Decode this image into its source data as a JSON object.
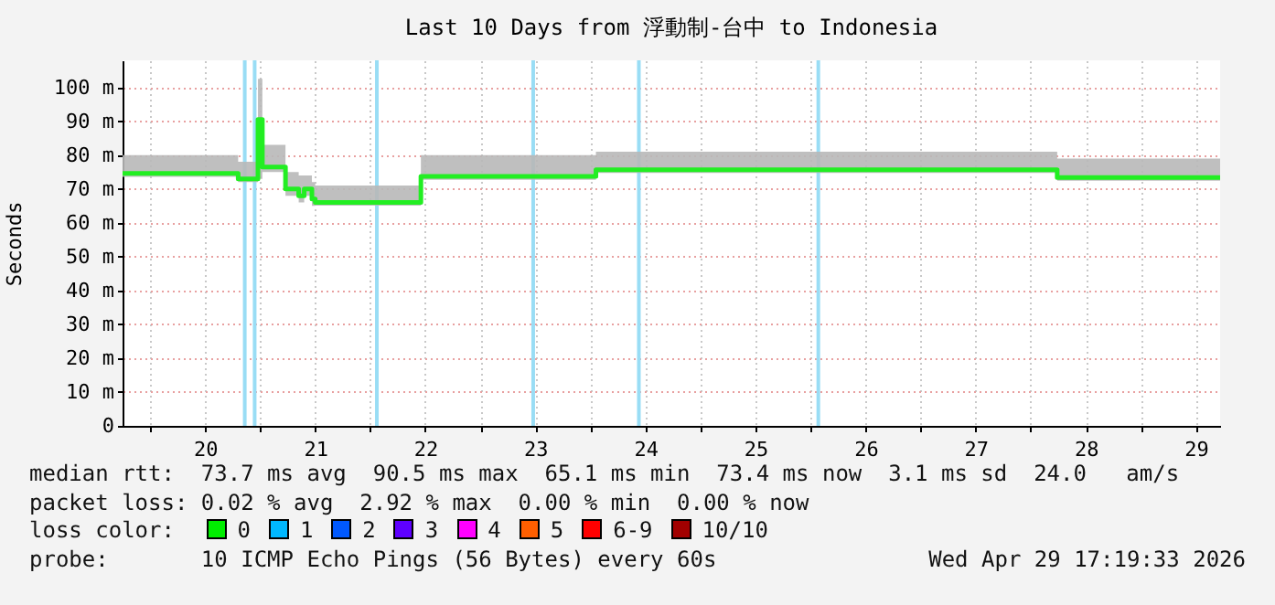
{
  "chart_data": {
    "type": "step",
    "title": "Last 10 Days from 浮動制-台中 to Indonesia",
    "ylabel": "Seconds",
    "xlim": [
      19.75,
      29.72
    ],
    "xticks": [
      {
        "value": 20,
        "label": null
      },
      {
        "value": 20.5,
        "label": "20"
      },
      {
        "value": 21,
        "label": null
      },
      {
        "value": 21.5,
        "label": "21"
      },
      {
        "value": 22,
        "label": null
      },
      {
        "value": 22.5,
        "label": "22"
      },
      {
        "value": 23,
        "label": null
      },
      {
        "value": 23.5,
        "label": "23"
      },
      {
        "value": 24,
        "label": null
      },
      {
        "value": 24.5,
        "label": "24"
      },
      {
        "value": 25,
        "label": null
      },
      {
        "value": 25.5,
        "label": "25"
      },
      {
        "value": 26,
        "label": null
      },
      {
        "value": 26.5,
        "label": "26"
      },
      {
        "value": 27,
        "label": null
      },
      {
        "value": 27.5,
        "label": "27"
      },
      {
        "value": 28,
        "label": null
      },
      {
        "value": 28.5,
        "label": "28"
      },
      {
        "value": 29,
        "label": null
      },
      {
        "value": 29.5,
        "label": "29"
      }
    ],
    "ylim": [
      0,
      108
    ],
    "yticks": [
      0,
      {
        "value": 10,
        "label": "10 m"
      },
      {
        "value": 20,
        "label": "20 m"
      },
      {
        "value": 30,
        "label": "30 m"
      },
      {
        "value": 40,
        "label": "40 m"
      },
      {
        "value": 50,
        "label": "50 m"
      },
      {
        "value": 60,
        "label": "60 m"
      },
      {
        "value": 70,
        "label": "70 m"
      },
      {
        "value": 80,
        "label": "80 m"
      },
      {
        "value": 90,
        "label": "90 m"
      },
      {
        "value": 100,
        "label": "100 m"
      }
    ],
    "grid": true,
    "series": [
      {
        "color": "#22ee22",
        "x": [
          19.75,
          20.8,
          20.98,
          21.02,
          21.23,
          21.35,
          21.4,
          21.47,
          21.5,
          22.46,
          24.05,
          28.24,
          29.72
        ],
        "values": [
          74.6,
          73,
          90.5,
          76.5,
          70,
          68,
          70,
          67,
          66,
          73.7,
          75.7,
          73.4,
          73.4
        ],
        "lower": [
          73.6,
          72,
          73,
          75,
          68,
          66,
          68,
          65,
          65.1,
          72.7,
          74.7,
          72.4,
          72.4
        ],
        "upper": [
          80,
          78,
          102.5,
          83,
          75,
          74,
          74,
          72,
          71,
          80,
          81,
          79,
          79
        ]
      }
    ],
    "ref_lines": [
      {
        "axis": "x",
        "value": 20.86,
        "color": "#99ddf5"
      },
      {
        "axis": "x",
        "value": 20.95,
        "color": "#99ddf5"
      },
      {
        "axis": "x",
        "value": 22.06,
        "color": "#99ddf5"
      },
      {
        "axis": "x",
        "value": 23.48,
        "color": "#99ddf5"
      },
      {
        "axis": "x",
        "value": 24.44,
        "color": "#99ddf5"
      },
      {
        "axis": "x",
        "value": 26.07,
        "color": "#99ddf5"
      }
    ],
    "annotations": [
      "median rtt:  73.7 ms avg  90.5 ms max  65.1 ms min  73.4 ms now  3.1 ms sd  24.0   am/s",
      "packet loss: 0.02 % avg  2.92 % max  0.00 % min  0.00 % now",
      "loss color:",
      "0",
      "1",
      "2",
      "3",
      "4",
      "5",
      "6-9",
      "10/10",
      "probe:       10 ICMP Echo Pings (56 Bytes) every 60s",
      "Wed Apr 29 17:19:33 2026"
    ]
  }
}
